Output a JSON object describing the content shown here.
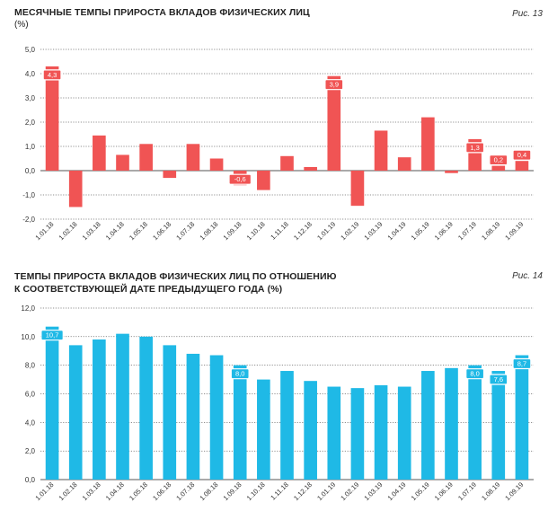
{
  "chart_data": [
    {
      "type": "bar",
      "title": "МЕСЯЧНЫЕ ТЕМПЫ ПРИРОСТА ВКЛАДОВ ФИЗИЧЕСКИХ ЛИЦ",
      "unit": "(%)",
      "figure": "Рис. 13",
      "color": "#f05454",
      "ylim": [
        -2.0,
        5.0
      ],
      "yticks": [
        "-2,0",
        "-1,0",
        "0,0",
        "1,0",
        "2,0",
        "3,0",
        "4,0",
        "5,0"
      ],
      "ytick_values": [
        -2,
        -1,
        0,
        1,
        2,
        3,
        4,
        5
      ],
      "categories": [
        "1.01.18",
        "1.02.18",
        "1.03.18",
        "1.04.18",
        "1.05.18",
        "1.06.18",
        "1.07.18",
        "1.08.18",
        "1.09.18",
        "1.10.18",
        "1.11.18",
        "1.12.18",
        "1.01.19",
        "1.02.19",
        "1.03.19",
        "1.04.19",
        "1.05.19",
        "1.06.19",
        "1.07.19",
        "1.08.19",
        "1.09.19"
      ],
      "values": [
        4.3,
        -1.5,
        1.45,
        0.65,
        1.1,
        -0.3,
        1.1,
        0.5,
        -0.6,
        -0.8,
        0.6,
        0.15,
        3.9,
        -1.45,
        1.65,
        0.55,
        2.2,
        -0.1,
        1.3,
        0.2,
        0.4
      ],
      "labels": [
        {
          "index": 0,
          "text": "4,3"
        },
        {
          "index": 8,
          "text": "-0,6"
        },
        {
          "index": 12,
          "text": "3,9"
        },
        {
          "index": 18,
          "text": "1,3"
        },
        {
          "index": 19,
          "text": "0,2"
        },
        {
          "index": 20,
          "text": "0,4"
        }
      ]
    },
    {
      "type": "bar",
      "title_lines": [
        "ТЕМПЫ ПРИРОСТА ВКЛАДОВ ФИЗИЧЕСКИХ ЛИЦ ПО ОТНОШЕНИЮ",
        "К СООТВЕТСТВУЮЩЕЙ ДАТЕ ПРЕДЫДУЩЕГО ГОДА (%)"
      ],
      "figure": "Рис. 14",
      "color": "#1fb9e6",
      "ylim": [
        0.0,
        12.0
      ],
      "yticks": [
        "0,0",
        "2,0",
        "4,0",
        "6,0",
        "8,0",
        "10,0",
        "12,0"
      ],
      "ytick_values": [
        0,
        2,
        4,
        6,
        8,
        10,
        12
      ],
      "categories": [
        "1.01.18",
        "1.02.18",
        "1.03.18",
        "1.04.18",
        "1.05.18",
        "1.06.18",
        "1.07.18",
        "1.08.18",
        "1.09.18",
        "1.10.18",
        "1.11.18",
        "1.12.18",
        "1.01.19",
        "1.02.19",
        "1.03.19",
        "1.04.19",
        "1.05.19",
        "1.06.19",
        "1.07.19",
        "1.08.19",
        "1.09.19"
      ],
      "values": [
        10.7,
        9.4,
        9.8,
        10.2,
        10.0,
        9.4,
        8.8,
        8.7,
        8.0,
        7.0,
        7.6,
        6.9,
        6.5,
        6.4,
        6.6,
        6.5,
        7.6,
        7.8,
        8.0,
        7.6,
        8.7
      ],
      "labels": [
        {
          "index": 0,
          "text": "10,7"
        },
        {
          "index": 8,
          "text": "8,0"
        },
        {
          "index": 18,
          "text": "8,0"
        },
        {
          "index": 19,
          "text": "7,6"
        },
        {
          "index": 20,
          "text": "8,7"
        }
      ]
    }
  ]
}
